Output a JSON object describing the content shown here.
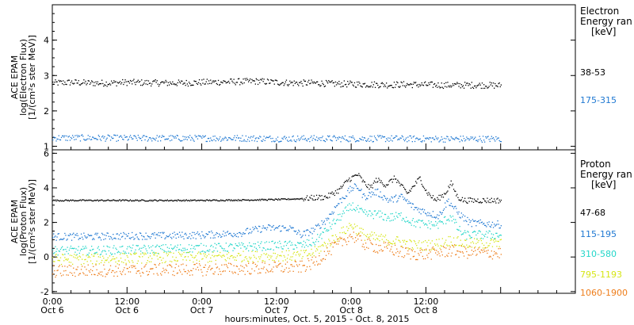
{
  "chart_data": [
    {
      "type": "scatter",
      "panel": "electron",
      "ylabel": [
        "ACE EPAM",
        "log(Electron Flux)",
        "[1/(cm²s ster MeV)]"
      ],
      "ylim": [
        0.9,
        5.0
      ],
      "yticks": [
        1,
        2,
        3,
        4
      ],
      "legend_title": [
        "Electron",
        "Energy ran",
        "[keV]"
      ],
      "series": [
        {
          "name": "38-53",
          "color": "#000000",
          "x": [
            0,
            3,
            6,
            9,
            12,
            15,
            18,
            21,
            24,
            27,
            30,
            33,
            36,
            39,
            42,
            45,
            48,
            51,
            54,
            57,
            60,
            63,
            66,
            69,
            72
          ],
          "y": [
            2.8,
            2.82,
            2.8,
            2.8,
            2.82,
            2.81,
            2.8,
            2.8,
            2.82,
            2.83,
            2.84,
            2.85,
            2.82,
            2.8,
            2.8,
            2.78,
            2.77,
            2.76,
            2.75,
            2.76,
            2.75,
            2.74,
            2.74,
            2.74,
            2.73
          ]
        },
        {
          "name": "175-315",
          "color": "#1f78d2",
          "x": [
            0,
            6,
            12,
            18,
            24,
            30,
            36,
            42,
            48,
            54,
            60,
            66,
            72
          ],
          "y": [
            1.25,
            1.25,
            1.24,
            1.24,
            1.24,
            1.24,
            1.23,
            1.23,
            1.23,
            1.23,
            1.22,
            1.22,
            1.22
          ]
        }
      ]
    },
    {
      "type": "scatter",
      "panel": "proton",
      "ylabel": [
        "ACE EPAM",
        "log(Proton Flux)",
        "[1/(cm²s ster MeV)]"
      ],
      "ylim": [
        -2.1,
        6.2
      ],
      "yticks": [
        -2,
        0,
        2,
        4,
        6
      ],
      "legend_title": [
        "Proton",
        "Energy ran",
        "[keV]"
      ],
      "series": [
        {
          "name": "47-68",
          "color": "#000000",
          "x": [
            0,
            6,
            12,
            18,
            24,
            30,
            36,
            40,
            44,
            46,
            47.5,
            49,
            50,
            51,
            52,
            53.5,
            55,
            56,
            57,
            59,
            60,
            61.5,
            63,
            64,
            65,
            66,
            72
          ],
          "y": [
            3.3,
            3.3,
            3.3,
            3.3,
            3.3,
            3.32,
            3.35,
            3.4,
            3.5,
            3.9,
            4.5,
            4.8,
            4.3,
            4.0,
            4.5,
            4.2,
            4.6,
            4.1,
            3.7,
            4.6,
            3.8,
            3.3,
            3.7,
            4.3,
            3.5,
            3.3,
            3.3
          ]
        },
        {
          "name": "115-195",
          "color": "#1f78d2",
          "x": [
            0,
            6,
            12,
            18,
            24,
            30,
            34,
            38,
            40,
            42,
            44,
            46,
            48,
            49,
            50,
            52,
            54,
            56,
            58,
            60,
            62,
            63.5,
            65,
            67,
            72
          ],
          "y": [
            1.2,
            1.2,
            1.25,
            1.25,
            1.3,
            1.4,
            1.7,
            1.7,
            1.3,
            1.6,
            2.2,
            3.2,
            4.0,
            4.1,
            3.5,
            3.8,
            3.3,
            3.5,
            2.9,
            2.6,
            2.4,
            3.3,
            2.6,
            2.0,
            1.9
          ]
        },
        {
          "name": "310-580",
          "color": "#22d6c8",
          "x": [
            0,
            6,
            12,
            18,
            24,
            30,
            36,
            40,
            42,
            44,
            46,
            48,
            50,
            52,
            54,
            56,
            58,
            60,
            62,
            64,
            65,
            66,
            72
          ],
          "y": [
            0.4,
            0.4,
            0.45,
            0.5,
            0.55,
            0.6,
            0.7,
            0.7,
            0.9,
            1.6,
            2.3,
            3.0,
            2.5,
            2.5,
            2.3,
            2.4,
            2.0,
            1.9,
            1.9,
            2.4,
            1.7,
            1.3,
            1.3
          ]
        },
        {
          "name": "795-1193",
          "color": "#d6e616",
          "x": [
            0,
            6,
            12,
            18,
            24,
            30,
            36,
            40,
            42,
            44,
            46,
            48,
            50,
            52,
            54,
            56,
            58,
            60,
            62,
            64,
            66,
            72
          ],
          "y": [
            -0.1,
            -0.1,
            -0.05,
            0.0,
            0.0,
            0.05,
            0.1,
            0.1,
            0.3,
            0.8,
            1.3,
            1.9,
            1.3,
            1.1,
            1.0,
            0.9,
            0.7,
            0.7,
            0.8,
            1.0,
            0.8,
            0.8
          ]
        },
        {
          "name": "1060-1900",
          "color": "#ee7d1a",
          "x": [
            0,
            6,
            12,
            18,
            24,
            30,
            36,
            40,
            42,
            44,
            46,
            48,
            50,
            52,
            54,
            56,
            58,
            60,
            62,
            64,
            66,
            72
          ],
          "y": [
            -0.8,
            -0.75,
            -0.75,
            -0.7,
            -0.7,
            -0.65,
            -0.6,
            -0.55,
            -0.3,
            0.3,
            0.8,
            1.3,
            0.8,
            0.6,
            0.5,
            0.3,
            0.2,
            0.2,
            0.3,
            0.4,
            0.3,
            0.25
          ]
        }
      ]
    }
  ],
  "x_axis": {
    "xlim": [
      0,
      84
    ],
    "ticks": [
      {
        "x": 0,
        "time": "0:00",
        "date": "Oct 6"
      },
      {
        "x": 12,
        "time": "12:00",
        "date": "Oct 6"
      },
      {
        "x": 24,
        "time": "0:00",
        "date": "Oct 7"
      },
      {
        "x": 36,
        "time": "12:00",
        "date": "Oct 7"
      },
      {
        "x": 48,
        "time": "0:00",
        "date": "Oct 8"
      },
      {
        "x": 60,
        "time": "12:00",
        "date": "Oct 8"
      }
    ],
    "xlabel": "hours:minutes, Oct.  5, 2015 - Oct.  8, 2015"
  }
}
